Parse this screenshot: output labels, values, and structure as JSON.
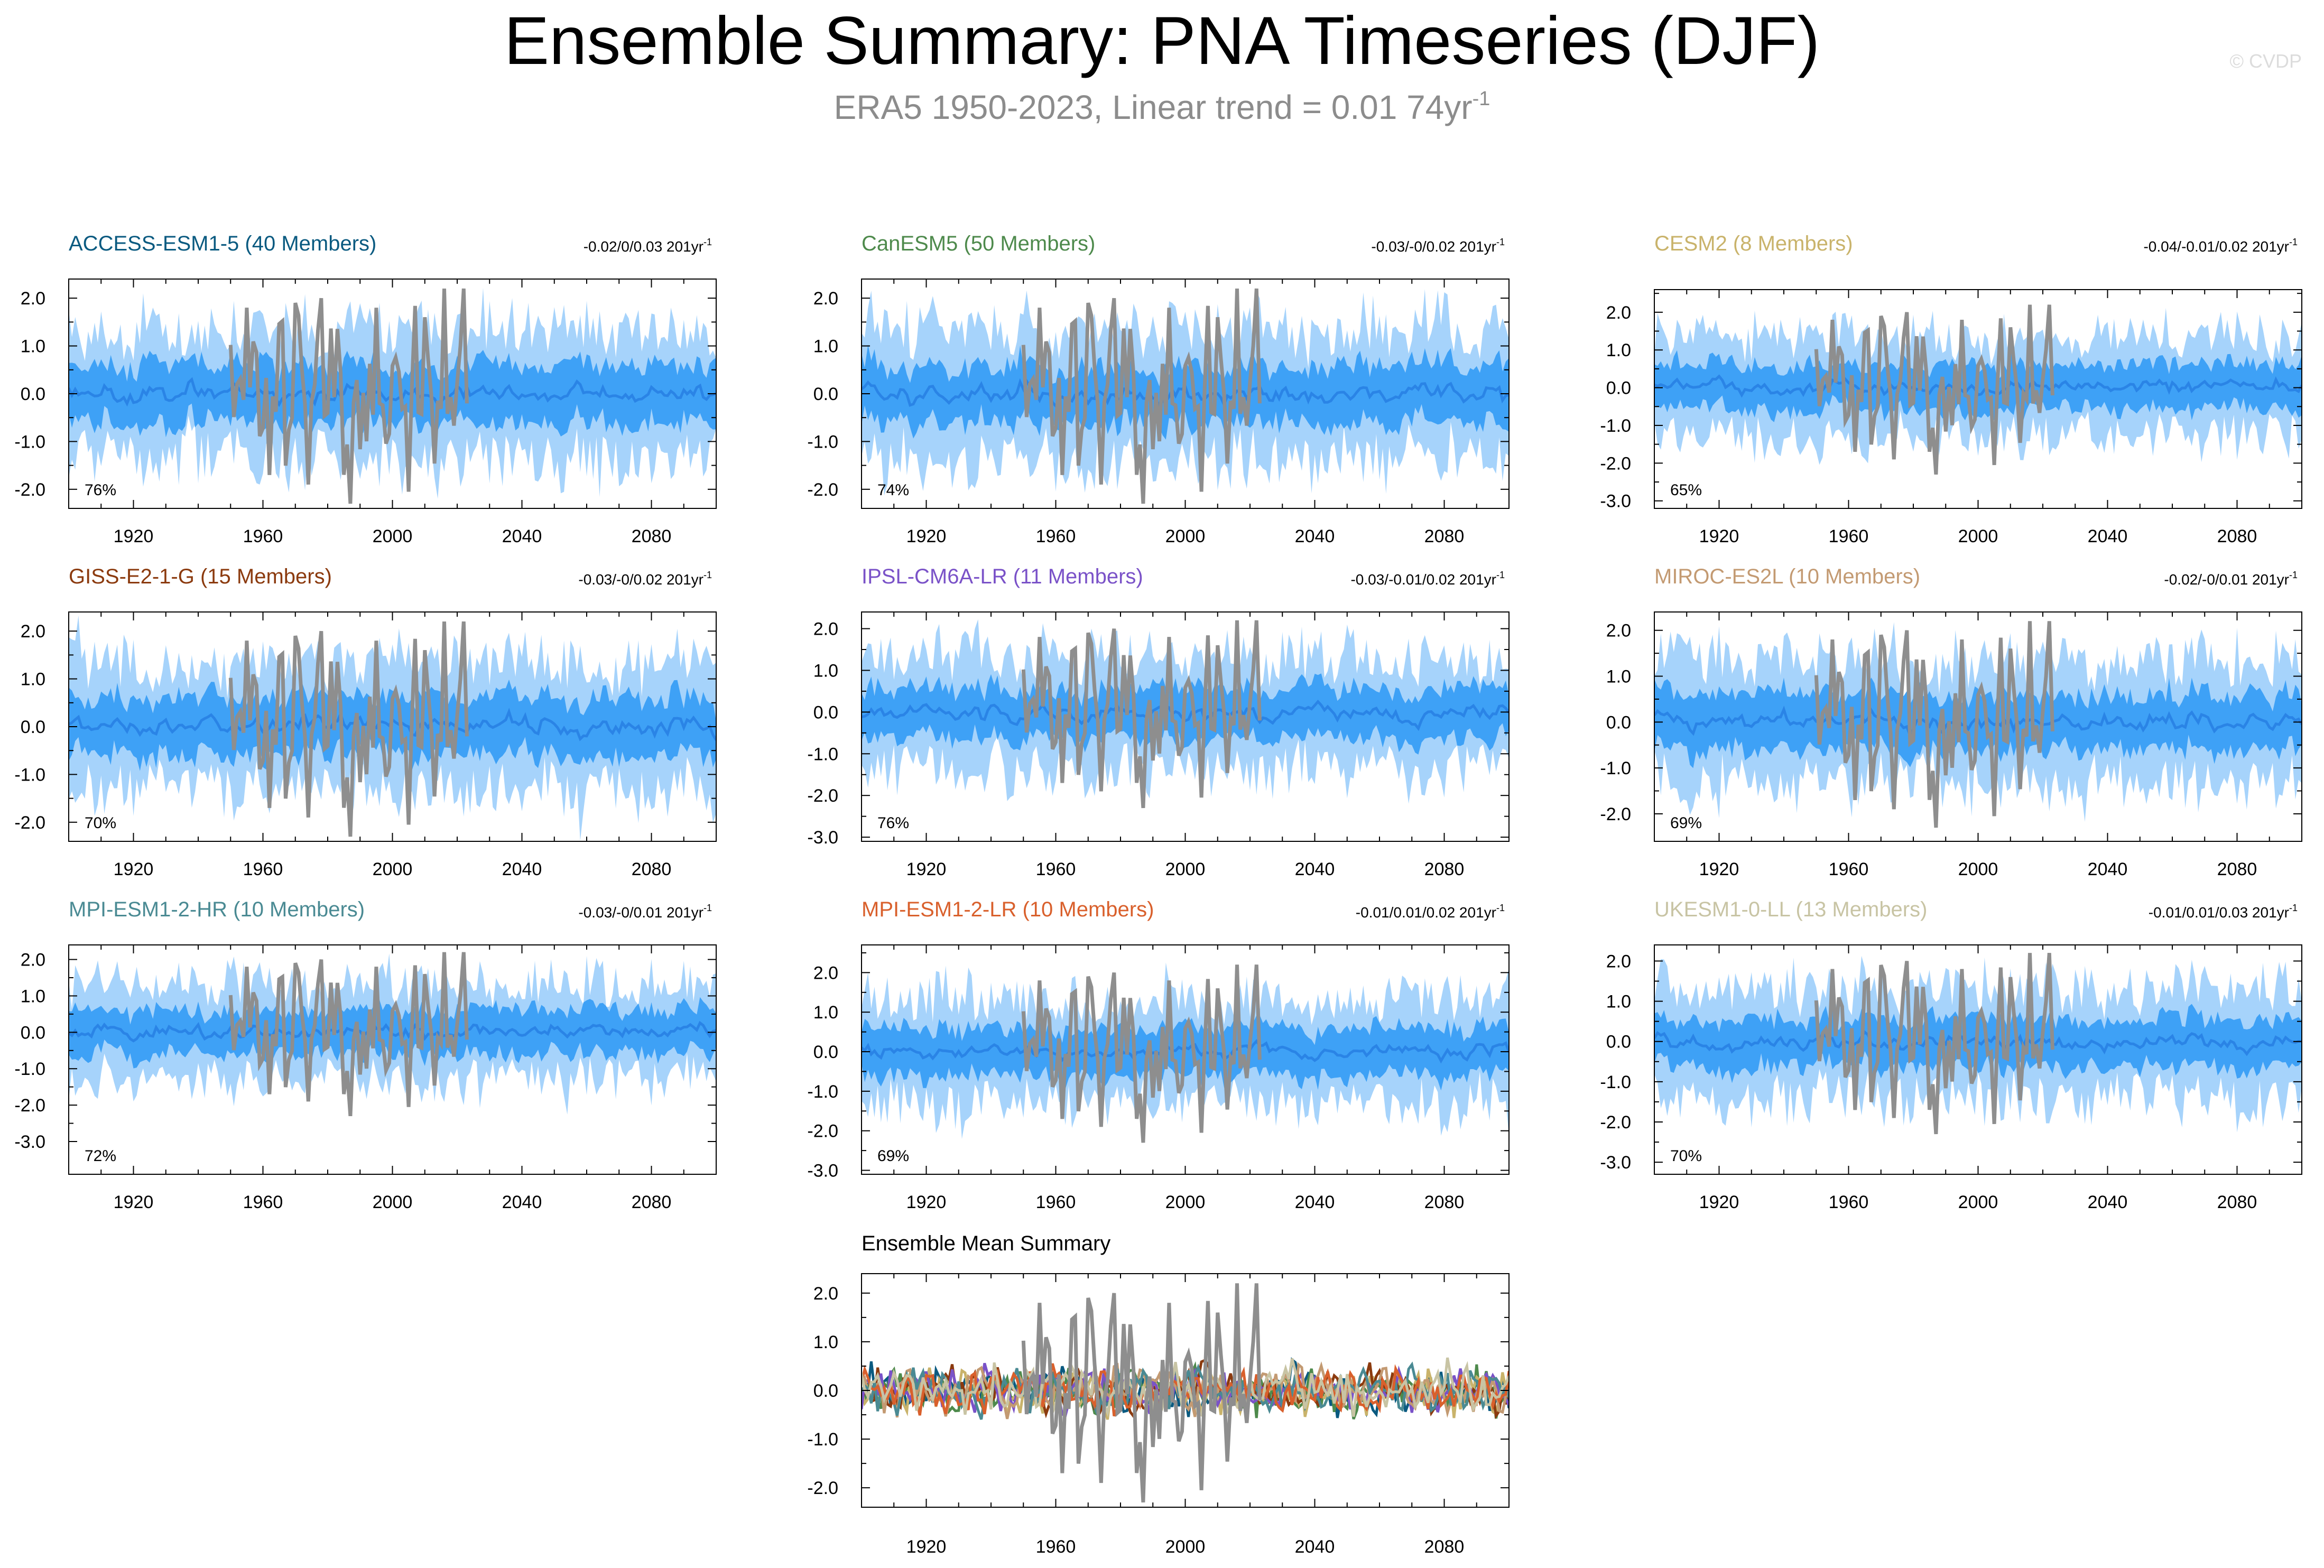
{
  "header": {
    "title": "Ensemble Summary: PNA Timeseries (DJF)",
    "subtitle_main": "ERA5 1950-2023, Linear trend = 0.01 74yr",
    "subtitle_sup": "-1",
    "watermark": "© CVDP"
  },
  "colors": {
    "band_outer": "#a6d3fb",
    "band_inner": "#3ea1f6",
    "ensemble_mean": "#2a84e6",
    "observations": "#8e8e8e",
    "axis": "#000000"
  },
  "chart_data": [
    {
      "type": "area",
      "name": "ACCESS-ESM1-5",
      "title": "ACCESS-ESM1-5 (40 Members)",
      "title_color": "#0a5a80",
      "trend_text": "-0.02/0/0.03 201yr",
      "trend_sup": "-1",
      "percent_label": "76%",
      "xlim": [
        1900,
        2100
      ],
      "ylim": [
        -2.4,
        2.4
      ],
      "yticks": [
        -2.0,
        -1.0,
        0.0,
        1.0,
        2.0
      ],
      "ytick_labels": [
        "-2.0",
        "-1.0",
        "0.0",
        "1.0",
        "2.0"
      ],
      "xticks": [
        1920,
        1960,
        2000,
        2040,
        2080
      ],
      "series": [
        {
          "name": "10-90% range",
          "values": [
            -1.3,
            1.3
          ]
        },
        {
          "name": "25-75% range",
          "values": [
            -0.7,
            0.7
          ]
        },
        {
          "name": "ensemble mean",
          "values": [
            0.0
          ]
        },
        {
          "name": "ERA5",
          "x_range": [
            1950,
            2023
          ]
        }
      ]
    },
    {
      "type": "area",
      "name": "CanESM5",
      "title": "CanESM5 (50 Members)",
      "title_color": "#4e8a4c",
      "trend_text": "-0.03/-0/0.02 201yr",
      "trend_sup": "-1",
      "percent_label": "74%",
      "xlim": [
        1900,
        2100
      ],
      "ylim": [
        -2.4,
        2.4
      ],
      "yticks": [
        -2.0,
        -1.0,
        0.0,
        1.0,
        2.0
      ],
      "ytick_labels": [
        "-2.0",
        "-1.0",
        "0.0",
        "1.0",
        "2.0"
      ],
      "xticks": [
        1920,
        1960,
        2000,
        2040,
        2080
      ],
      "series": [
        {
          "name": "10-90% range",
          "values": [
            -1.3,
            1.3
          ]
        },
        {
          "name": "25-75% range",
          "values": [
            -0.7,
            0.7
          ]
        },
        {
          "name": "ensemble mean",
          "values": [
            0.0
          ]
        },
        {
          "name": "ERA5",
          "x_range": [
            1950,
            2023
          ]
        }
      ]
    },
    {
      "type": "area",
      "name": "CESM2",
      "title": "CESM2 (8 Members)",
      "title_color": "#c9b36b",
      "trend_text": "-0.04/-0.01/0.02 201yr",
      "trend_sup": "-1",
      "percent_label": "65%",
      "xlim": [
        1900,
        2100
      ],
      "ylim": [
        -3.2,
        2.6
      ],
      "yticks": [
        -3.0,
        -2.0,
        -1.0,
        0.0,
        1.0,
        2.0
      ],
      "ytick_labels": [
        "-3.0",
        "-2.0",
        "-1.0",
        "0.0",
        "1.0",
        "2.0"
      ],
      "xticks": [
        1920,
        1960,
        2000,
        2040,
        2080
      ],
      "series": [
        {
          "name": "10-90% range",
          "values": [
            -1.3,
            1.3
          ]
        },
        {
          "name": "25-75% range",
          "values": [
            -0.7,
            0.7
          ]
        },
        {
          "name": "ensemble mean",
          "values": [
            0.0
          ]
        },
        {
          "name": "ERA5",
          "x_range": [
            1950,
            2023
          ]
        }
      ]
    },
    {
      "type": "area",
      "name": "GISS-E2-1-G",
      "title": "GISS-E2-1-G (15 Members)",
      "title_color": "#8b3a0e",
      "trend_text": "-0.03/-0/0.02 201yr",
      "trend_sup": "-1",
      "percent_label": "70%",
      "xlim": [
        1900,
        2100
      ],
      "ylim": [
        -2.4,
        2.4
      ],
      "yticks": [
        -2.0,
        -1.0,
        0.0,
        1.0,
        2.0
      ],
      "ytick_labels": [
        "-2.0",
        "-1.0",
        "0.0",
        "1.0",
        "2.0"
      ],
      "xticks": [
        1920,
        1960,
        2000,
        2040,
        2080
      ],
      "series": [
        {
          "name": "10-90% range",
          "values": [
            -1.3,
            1.3
          ]
        },
        {
          "name": "25-75% range",
          "values": [
            -0.7,
            0.7
          ]
        },
        {
          "name": "ensemble mean",
          "values": [
            0.0
          ]
        },
        {
          "name": "ERA5",
          "x_range": [
            1950,
            2023
          ]
        }
      ]
    },
    {
      "type": "area",
      "name": "IPSL-CM6A-LR",
      "title": "IPSL-CM6A-LR (11 Members)",
      "title_color": "#7a52c8",
      "trend_text": "-0.03/-0.01/0.02 201yr",
      "trend_sup": "-1",
      "percent_label": "76%",
      "xlim": [
        1900,
        2100
      ],
      "ylim": [
        -3.1,
        2.4
      ],
      "yticks": [
        -3.0,
        -2.0,
        -1.0,
        0.0,
        1.0,
        2.0
      ],
      "ytick_labels": [
        "-3.0",
        "-2.0",
        "-1.0",
        "0.0",
        "1.0",
        "2.0"
      ],
      "xticks": [
        1920,
        1960,
        2000,
        2040,
        2080
      ],
      "series": [
        {
          "name": "10-90% range",
          "values": [
            -1.3,
            1.3
          ]
        },
        {
          "name": "25-75% range",
          "values": [
            -0.7,
            0.7
          ]
        },
        {
          "name": "ensemble mean",
          "values": [
            0.0
          ]
        },
        {
          "name": "ERA5",
          "x_range": [
            1950,
            2023
          ]
        }
      ]
    },
    {
      "type": "area",
      "name": "MIROC-ES2L",
      "title": "MIROC-ES2L (10 Members)",
      "title_color": "#c39a72",
      "trend_text": "-0.02/-0/0.01 201yr",
      "trend_sup": "-1",
      "percent_label": "69%",
      "xlim": [
        1900,
        2100
      ],
      "ylim": [
        -2.6,
        2.4
      ],
      "yticks": [
        -2.0,
        -1.0,
        0.0,
        1.0,
        2.0
      ],
      "ytick_labels": [
        "-2.0",
        "-1.0",
        "0.0",
        "1.0",
        "2.0"
      ],
      "xticks": [
        1920,
        1960,
        2000,
        2040,
        2080
      ],
      "series": [
        {
          "name": "10-90% range",
          "values": [
            -1.3,
            1.3
          ]
        },
        {
          "name": "25-75% range",
          "values": [
            -0.7,
            0.7
          ]
        },
        {
          "name": "ensemble mean",
          "values": [
            0.0
          ]
        },
        {
          "name": "ERA5",
          "x_range": [
            1950,
            2023
          ]
        }
      ]
    },
    {
      "type": "area",
      "name": "MPI-ESM1-2-HR",
      "title": "MPI-ESM1-2-HR (10 Members)",
      "title_color": "#4a8a93",
      "trend_text": "-0.03/-0/0.01 201yr",
      "trend_sup": "-1",
      "percent_label": "72%",
      "xlim": [
        1900,
        2100
      ],
      "ylim": [
        -3.9,
        2.4
      ],
      "yticks": [
        -3.0,
        -2.0,
        -1.0,
        0.0,
        1.0,
        2.0
      ],
      "ytick_labels": [
        "-3.0",
        "-2.0",
        "-1.0",
        "0.0",
        "1.0",
        "2.0"
      ],
      "xticks": [
        1920,
        1960,
        2000,
        2040,
        2080
      ],
      "series": [
        {
          "name": "10-90% range",
          "values": [
            -1.3,
            1.3
          ]
        },
        {
          "name": "25-75% range",
          "values": [
            -0.7,
            0.7
          ]
        },
        {
          "name": "ensemble mean",
          "values": [
            0.0
          ]
        },
        {
          "name": "ERA5",
          "x_range": [
            1950,
            2023
          ]
        }
      ]
    },
    {
      "type": "area",
      "name": "MPI-ESM1-2-LR",
      "title": "MPI-ESM1-2-LR (10 Members)",
      "title_color": "#d9602c",
      "trend_text": "-0.01/0.01/0.02 201yr",
      "trend_sup": "-1",
      "percent_label": "69%",
      "xlim": [
        1900,
        2100
      ],
      "ylim": [
        -3.1,
        2.7
      ],
      "yticks": [
        -3.0,
        -2.0,
        -1.0,
        0.0,
        1.0,
        2.0
      ],
      "ytick_labels": [
        "-3.0",
        "-2.0",
        "-1.0",
        "0.0",
        "1.0",
        "2.0"
      ],
      "xticks": [
        1920,
        1960,
        2000,
        2040,
        2080
      ],
      "series": [
        {
          "name": "10-90% range",
          "values": [
            -1.3,
            1.3
          ]
        },
        {
          "name": "25-75% range",
          "values": [
            -0.7,
            0.7
          ]
        },
        {
          "name": "ensemble mean",
          "values": [
            0.0
          ]
        },
        {
          "name": "ERA5",
          "x_range": [
            1950,
            2023
          ]
        }
      ]
    },
    {
      "type": "area",
      "name": "UKESM1-0-LL",
      "title": "UKESM1-0-LL (13 Members)",
      "title_color": "#c8c4a4",
      "trend_text": "-0.01/0.01/0.03 201yr",
      "trend_sup": "-1",
      "percent_label": "70%",
      "xlim": [
        1900,
        2100
      ],
      "ylim": [
        -3.3,
        2.4
      ],
      "yticks": [
        -3.0,
        -2.0,
        -1.0,
        0.0,
        1.0,
        2.0
      ],
      "ytick_labels": [
        "-3.0",
        "-2.0",
        "-1.0",
        "0.0",
        "1.0",
        "2.0"
      ],
      "xticks": [
        1920,
        1960,
        2000,
        2040,
        2080
      ],
      "series": [
        {
          "name": "10-90% range",
          "values": [
            -1.3,
            1.3
          ]
        },
        {
          "name": "25-75% range",
          "values": [
            -0.7,
            0.7
          ]
        },
        {
          "name": "ensemble mean",
          "values": [
            0.0
          ]
        },
        {
          "name": "ERA5",
          "x_range": [
            1950,
            2023
          ]
        }
      ]
    },
    {
      "type": "line",
      "name": "Ensemble Mean Summary",
      "title": "Ensemble Mean Summary",
      "title_color": "#000000",
      "trend_text": "",
      "trend_sup": "",
      "percent_label": "",
      "xlim": [
        1900,
        2100
      ],
      "ylim": [
        -2.4,
        2.4
      ],
      "yticks": [
        -2.0,
        -1.0,
        0.0,
        1.0,
        2.0
      ],
      "ytick_labels": [
        "-2.0",
        "-1.0",
        "0.0",
        "1.0",
        "2.0"
      ],
      "xticks": [
        1920,
        1960,
        2000,
        2040,
        2080
      ],
      "series": [
        {
          "name": "ERA5",
          "x_range": [
            1950,
            2023
          ],
          "color": "#8e8e8e"
        },
        {
          "name": "ACCESS-ESM1-5",
          "color": "#0a5a80"
        },
        {
          "name": "CanESM5",
          "color": "#4e8a4c"
        },
        {
          "name": "CESM2",
          "color": "#c9b36b"
        },
        {
          "name": "GISS-E2-1-G",
          "color": "#8b3a0e"
        },
        {
          "name": "IPSL-CM6A-LR",
          "color": "#7a52c8"
        },
        {
          "name": "MIROC-ES2L",
          "color": "#c39a72"
        },
        {
          "name": "MPI-ESM1-2-HR",
          "color": "#4a8a93"
        },
        {
          "name": "MPI-ESM1-2-LR",
          "color": "#d9602c"
        },
        {
          "name": "UKESM1-0-LL",
          "color": "#c8c4a4"
        }
      ]
    }
  ]
}
